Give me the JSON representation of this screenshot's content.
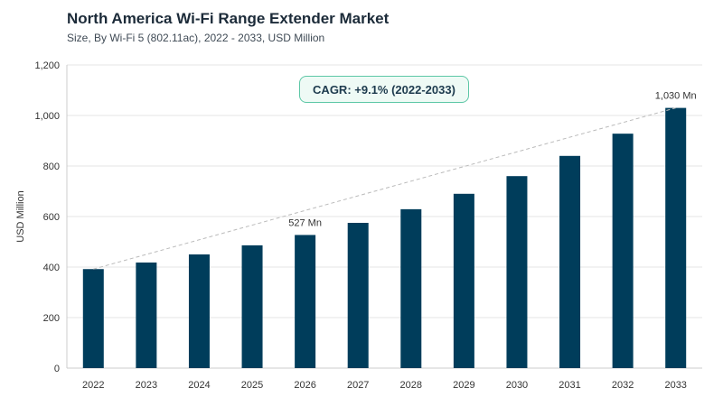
{
  "title": "North America Wi-Fi Range Extender Market",
  "subtitle": "Size, By Wi-Fi 5 (802.11ac), 2022 - 2033, USD Million",
  "cagr_label": "CAGR: +9.1% (2022-2033)",
  "colors": {
    "bar": "#003d5b",
    "trend": "#bbbbbb",
    "cagr_border": "#5dc7a6",
    "cagr_bg": "#eefaf5"
  },
  "chart_data": {
    "type": "bar",
    "categories": [
      "2022",
      "2023",
      "2024",
      "2025",
      "2026",
      "2027",
      "2028",
      "2029",
      "2030",
      "2031",
      "2032",
      "2033"
    ],
    "values": [
      392,
      418,
      450,
      486,
      527,
      575,
      629,
      690,
      760,
      840,
      928,
      1030
    ],
    "ylabel": "USD Million",
    "ylim": [
      0,
      1200
    ],
    "yticks": [
      0,
      200,
      400,
      600,
      800,
      1000,
      1200
    ],
    "ytick_labels": [
      "0",
      "200",
      "400",
      "600",
      "800",
      "1,000",
      "1,200"
    ],
    "grid": true,
    "annotations": [
      {
        "category": "2026",
        "text": "527 Mn"
      },
      {
        "category": "2033",
        "text": "1,030 Mn"
      }
    ],
    "trendline": {
      "from": "2022",
      "to": "2033",
      "style": "dashed"
    }
  }
}
